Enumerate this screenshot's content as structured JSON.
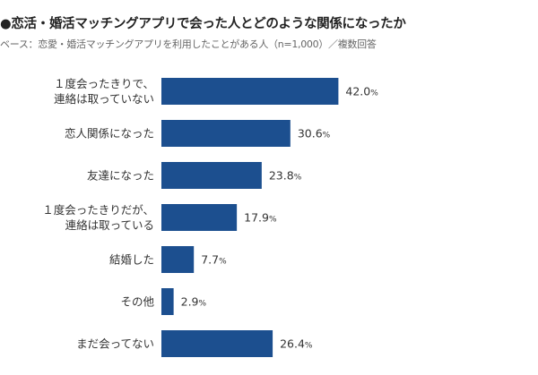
{
  "title": "●恋活・婚活マッチングアプリで会った人とどのような関係になったか",
  "subtitle": "ベース：恋愛・婚活マッチングアプリを利用したことがある人（n=1,000）／複数回答",
  "chart_data": {
    "type": "bar",
    "orientation": "horizontal",
    "title": "●恋活・婚活マッチングアプリで会った人とどのような関係になったか",
    "subtitle": "ベース：恋愛・婚活マッチングアプリを利用したことがある人（n=1,000）／複数回答",
    "categories": [
      [
        "１度会ったきりで、",
        "連絡は取っていない"
      ],
      [
        "恋人関係になった"
      ],
      [
        "友達になった"
      ],
      [
        "１度会ったきりだが、",
        "連絡は取っている"
      ],
      [
        "結婚した"
      ],
      [
        "その他"
      ],
      [
        "まだ会ってない"
      ]
    ],
    "values": [
      42.0,
      30.6,
      23.8,
      17.9,
      7.7,
      2.9,
      26.4
    ],
    "unit": "%",
    "xlim": [
      0,
      100
    ],
    "grid": false,
    "bar_color": "#1c4f8f"
  }
}
